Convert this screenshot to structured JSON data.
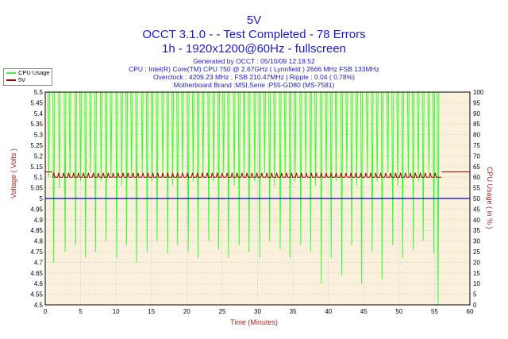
{
  "header": {
    "title": "5V",
    "subtitle": "OCCT 3.1.0 -  - Test Completed - 78 Errors",
    "subtitle2": "1h - 1920x1200@60Hz - fullscreen",
    "info_generated": "Generated by OCCT : 05/10/09 12:18:52",
    "info_cpu": "CPU : Intel(R) Core(TM) CPU 750 @ 2.67GHz ( Lynnfield ) 2666 MHz FSB 133MHz",
    "info_overclock": "Overclock : 4209.23 MHz ; FSB 210.47MHz | Ripple : 0.04 ( 0.78%)",
    "info_motherboard": "Motherboard Brand :MSI,Serie :P55-GD80 (MS-7581)"
  },
  "colors": {
    "cpu_usage": "#33ff33",
    "voltage_5v": "#990000",
    "reference": "#0000cc",
    "plot_bg": "#fbf0dc",
    "grid": "#b4b4b4",
    "axis_text": "#b22222"
  },
  "chart_data": {
    "type": "line",
    "xlabel": "Time (Minutes)",
    "ylabel_left": "Voltage ( Volts )",
    "ylabel_right": "CPU Usage ( in % )",
    "xlim": [
      0,
      60
    ],
    "ylim_left": [
      4.5,
      5.5
    ],
    "ylim_right": [
      0,
      100
    ],
    "x_ticks": [
      0,
      5,
      10,
      15,
      20,
      25,
      30,
      35,
      40,
      45,
      50,
      55,
      60
    ],
    "y_ticks_left": [
      "5.5",
      "5.45",
      "5.4",
      "5.35",
      "5.3",
      "5.25",
      "5.2",
      "5.15",
      "5.1",
      "5.05",
      "5",
      "4.95",
      "4.9",
      "4.85",
      "4.8",
      "4.75",
      "4.7",
      "4.65",
      "4.6",
      "4.55",
      "4.5"
    ],
    "y_ticks_right": [
      "100",
      "95",
      "90",
      "85",
      "80",
      "75",
      "70",
      "65",
      "60",
      "55",
      "50",
      "45",
      "40",
      "35",
      "30",
      "25",
      "20",
      "15",
      "10",
      "5",
      "0"
    ],
    "grid": true,
    "legend_position": "top-left",
    "legend": [
      "CPU Usage",
      "5V"
    ],
    "series": [
      {
        "name": "CPU Usage",
        "axis": "right",
        "baseline": 100,
        "drops": [
          [
            0.5,
            60
          ],
          [
            1.2,
            20
          ],
          [
            2.0,
            55
          ],
          [
            2.8,
            25
          ],
          [
            3.5,
            60
          ],
          [
            4.3,
            28
          ],
          [
            5.0,
            58
          ],
          [
            5.7,
            22
          ],
          [
            6.4,
            62
          ],
          [
            7.1,
            25
          ],
          [
            7.9,
            58
          ],
          [
            8.6,
            30
          ],
          [
            9.3,
            60
          ],
          [
            10.1,
            22
          ],
          [
            10.8,
            56
          ],
          [
            11.5,
            28
          ],
          [
            12.2,
            60
          ],
          [
            12.9,
            20
          ],
          [
            13.7,
            62
          ],
          [
            14.4,
            25
          ],
          [
            15.1,
            58
          ],
          [
            15.8,
            30
          ],
          [
            16.6,
            60
          ],
          [
            17.3,
            24
          ],
          [
            18.0,
            56
          ],
          [
            18.7,
            28
          ],
          [
            19.4,
            62
          ],
          [
            20.2,
            25
          ],
          [
            20.9,
            58
          ],
          [
            21.6,
            22
          ],
          [
            22.3,
            60
          ],
          [
            23.1,
            30
          ],
          [
            23.8,
            58
          ],
          [
            24.5,
            26
          ],
          [
            25.2,
            62
          ],
          [
            25.9,
            22
          ],
          [
            26.7,
            56
          ],
          [
            27.4,
            28
          ],
          [
            28.1,
            60
          ],
          [
            28.8,
            25
          ],
          [
            29.6,
            58
          ],
          [
            30.3,
            22
          ],
          [
            31.0,
            62
          ],
          [
            31.7,
            30
          ],
          [
            32.4,
            56
          ],
          [
            33.2,
            26
          ],
          [
            33.9,
            60
          ],
          [
            34.6,
            22
          ],
          [
            35.3,
            58
          ],
          [
            36.1,
            28
          ],
          [
            36.8,
            62
          ],
          [
            37.5,
            25
          ],
          [
            38.2,
            56
          ],
          [
            39.0,
            10
          ],
          [
            39.7,
            60
          ],
          [
            40.4,
            22
          ],
          [
            41.1,
            58
          ],
          [
            41.9,
            14
          ],
          [
            42.6,
            62
          ],
          [
            43.3,
            28
          ],
          [
            44.0,
            56
          ],
          [
            44.7,
            10
          ],
          [
            45.5,
            60
          ],
          [
            46.2,
            25
          ],
          [
            46.9,
            58
          ],
          [
            47.6,
            12
          ],
          [
            48.4,
            62
          ],
          [
            49.1,
            28
          ],
          [
            49.8,
            56
          ],
          [
            50.5,
            22
          ],
          [
            51.3,
            60
          ],
          [
            52.0,
            26
          ],
          [
            52.7,
            58
          ],
          [
            53.4,
            30
          ],
          [
            54.2,
            62
          ],
          [
            54.9,
            24
          ],
          [
            55.5,
            0
          ]
        ]
      },
      {
        "name": "5V",
        "axis": "left",
        "x_start": 0,
        "x_end": 56,
        "value_start": 5.125,
        "value_end": 5.125,
        "ripple_base": 5.1,
        "ripple_peak": 5.12,
        "pulse_times": [
          1.2,
          1.9,
          2.6,
          3.3,
          4.0,
          4.7,
          5.4,
          6.1,
          6.8,
          7.5,
          8.2,
          8.9,
          9.6,
          10.3,
          11.0,
          11.7,
          12.4,
          13.1,
          13.8,
          14.5,
          15.2,
          15.9,
          16.6,
          17.3,
          18.0,
          18.7,
          19.4,
          20.1,
          20.8,
          21.5,
          22.2,
          22.9,
          23.6,
          24.3,
          25.0,
          25.7,
          26.4,
          27.1,
          27.8,
          28.5,
          29.2,
          29.9,
          30.6,
          31.3,
          32.0,
          32.7,
          33.4,
          34.1,
          34.8,
          35.5,
          36.2,
          36.9,
          37.6,
          38.3,
          39.0,
          39.7,
          40.4,
          41.1,
          41.8,
          42.5,
          43.2,
          43.9,
          44.6,
          45.3,
          46.0,
          46.7,
          47.4,
          48.1,
          48.8,
          49.5,
          50.2,
          50.9,
          51.6,
          52.3,
          53.0,
          53.7,
          54.4,
          55.1
        ]
      },
      {
        "name": "",
        "axis": "left",
        "value": 5.0,
        "style": "reference"
      }
    ]
  }
}
